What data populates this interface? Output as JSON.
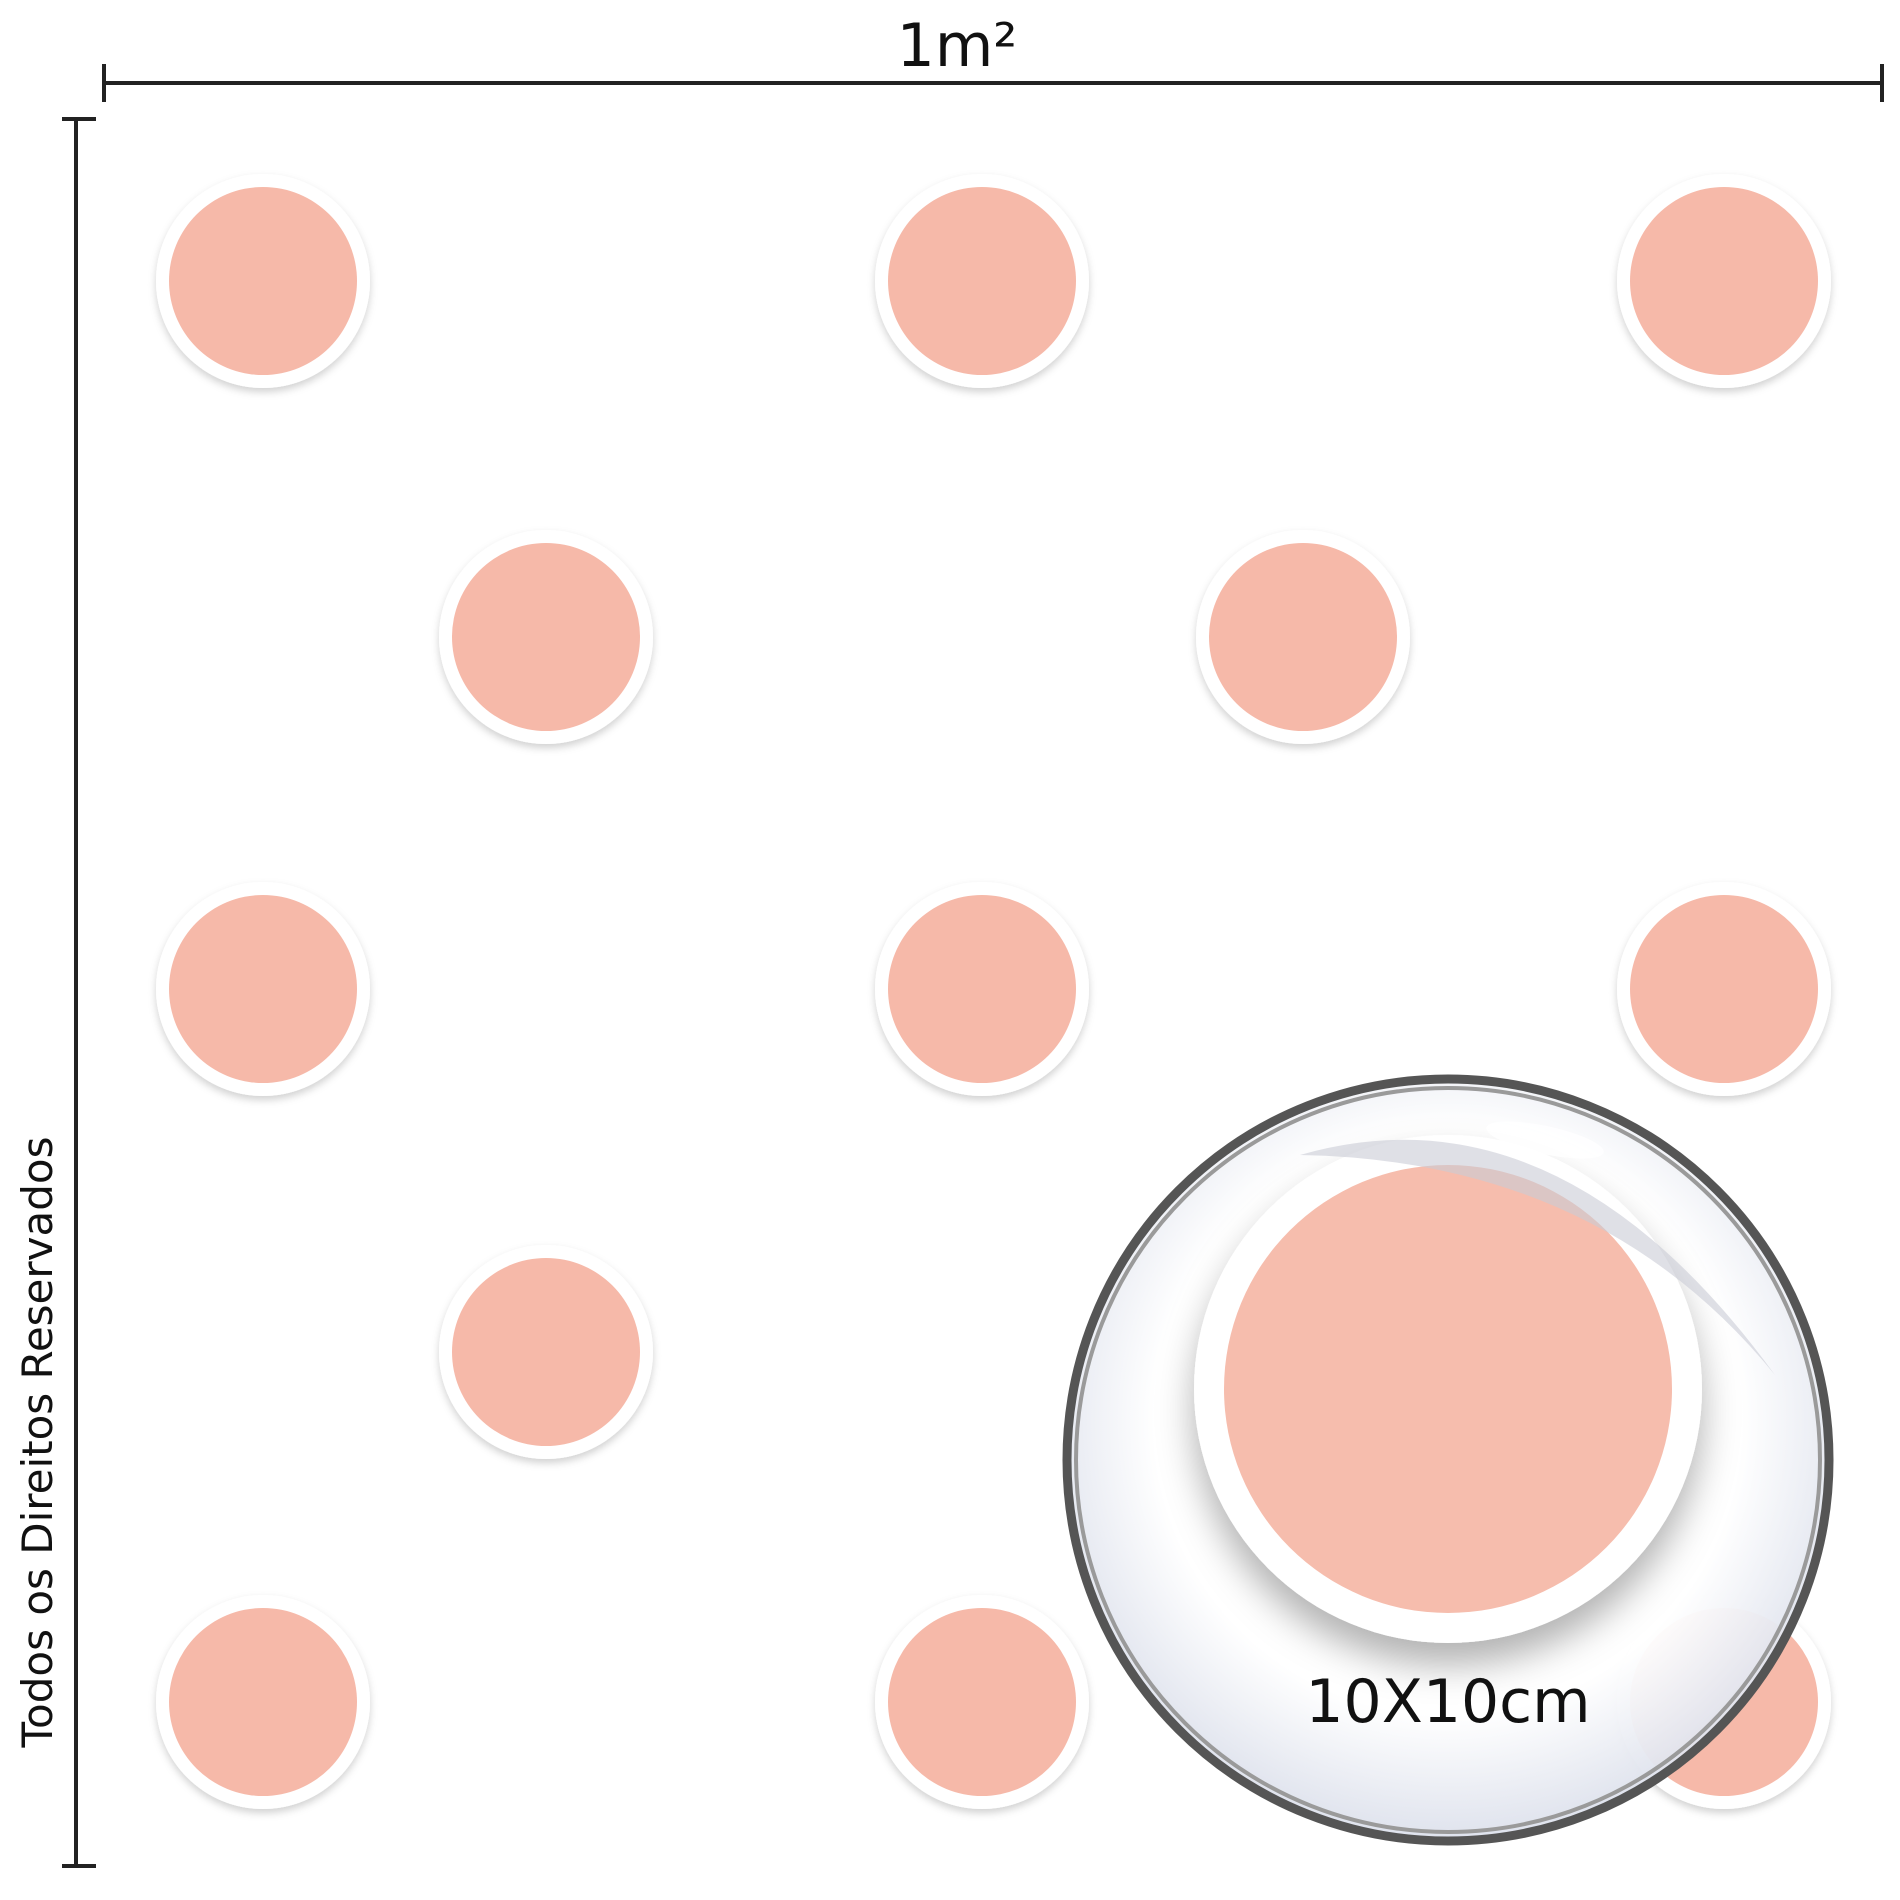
{
  "dimension_top": "1m²",
  "side_text": "Todos os Direitos Reservados",
  "zoom_label": "10X10cm"
}
